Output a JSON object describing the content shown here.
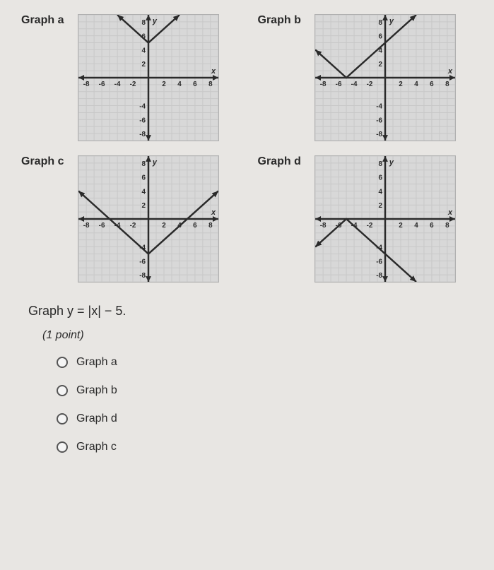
{
  "graphs": {
    "a": {
      "label": "Graph a",
      "type": "line",
      "xlim": [
        -9,
        9
      ],
      "ylim": [
        -9,
        9
      ],
      "x_ticks": [
        -8,
        -6,
        -4,
        -2,
        2,
        4,
        6,
        8
      ],
      "y_ticks": [
        -8,
        -6,
        -4,
        2,
        4,
        6,
        8
      ],
      "x_axis_label": "x",
      "y_axis_label": "y",
      "vertex": [
        0,
        5
      ],
      "points": [
        [
          -4,
          9
        ],
        [
          0,
          5
        ],
        [
          4,
          9
        ]
      ],
      "grid_color": "#c8c8c8",
      "axis_color": "#2a2a2a",
      "line_color": "#2a2a2a",
      "background_color": "#d8d8d8",
      "line_width": 2.5
    },
    "b": {
      "label": "Graph b",
      "type": "line",
      "xlim": [
        -9,
        9
      ],
      "ylim": [
        -9,
        9
      ],
      "x_ticks": [
        -8,
        -6,
        -4,
        -2,
        2,
        4,
        6,
        8
      ],
      "y_ticks": [
        -8,
        -6,
        -4,
        2,
        4,
        6,
        8
      ],
      "x_axis_label": "x",
      "y_axis_label": "y",
      "vertex": [
        -5,
        0
      ],
      "points": [
        [
          -9,
          4
        ],
        [
          -5,
          0
        ],
        [
          4,
          9
        ]
      ],
      "grid_color": "#c8c8c8",
      "axis_color": "#2a2a2a",
      "line_color": "#2a2a2a",
      "background_color": "#d8d8d8",
      "line_width": 2.5
    },
    "c": {
      "label": "Graph c",
      "type": "line",
      "xlim": [
        -9,
        9
      ],
      "ylim": [
        -9,
        9
      ],
      "x_ticks": [
        -8,
        -6,
        -4,
        -2,
        2,
        4,
        6,
        8
      ],
      "y_ticks": [
        -8,
        -6,
        -4,
        2,
        4,
        6,
        8
      ],
      "x_axis_label": "x",
      "y_axis_label": "y",
      "vertex": [
        0,
        -5
      ],
      "points": [
        [
          -9,
          4
        ],
        [
          0,
          -5
        ],
        [
          9,
          4
        ]
      ],
      "grid_color": "#c8c8c8",
      "axis_color": "#2a2a2a",
      "line_color": "#2a2a2a",
      "background_color": "#d8d8d8",
      "line_width": 2.5
    },
    "d": {
      "label": "Graph d",
      "type": "line",
      "xlim": [
        -9,
        9
      ],
      "ylim": [
        -9,
        9
      ],
      "x_ticks": [
        -8,
        -6,
        -4,
        -2,
        2,
        4,
        6,
        8
      ],
      "y_ticks": [
        -8,
        -6,
        -4,
        2,
        4,
        6,
        8
      ],
      "x_axis_label": "x",
      "y_axis_label": "y",
      "vertex": [
        -5,
        0
      ],
      "points": [
        [
          -9,
          -4
        ],
        [
          -5,
          0
        ],
        [
          4,
          -9
        ]
      ],
      "grid_color": "#c8c8c8",
      "axis_color": "#2a2a2a",
      "line_color": "#2a2a2a",
      "background_color": "#d8d8d8",
      "line_width": 2.5
    }
  },
  "question": "Graph y = |x| − 5.",
  "points_label": "(1 point)",
  "options": [
    {
      "label": "Graph a"
    },
    {
      "label": "Graph b"
    },
    {
      "label": "Graph d"
    },
    {
      "label": "Graph c"
    }
  ]
}
